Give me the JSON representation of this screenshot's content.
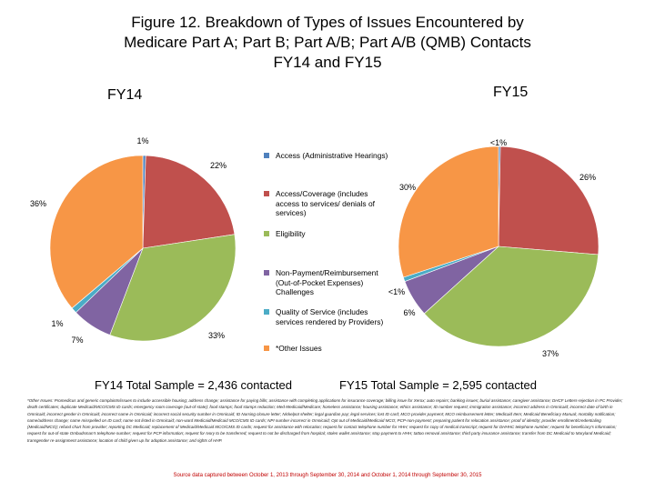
{
  "title": {
    "line1": "Figure 12. Breakdown of Types of Issues Encountered by",
    "line2": "Medicare Part A; Part B; Part A/B; Part A/B (QMB) Contacts",
    "line3": "FY14 and FY15"
  },
  "colors": {
    "access": "#4f81bd",
    "access_coverage": "#c0504d",
    "eligibility": "#9bbb59",
    "non_payment": "#8064a2",
    "quality": "#4bacc6",
    "other": "#f79646"
  },
  "legend": [
    {
      "key": "access",
      "label": "Access (Administrative Hearings)"
    },
    {
      "key": "access_coverage",
      "label": "Access/Coverage (includes access to services/ denials of services)"
    },
    {
      "key": "eligibility",
      "label": "Eligibility"
    },
    {
      "key": "non_payment",
      "label": "Non-Payment/Reimbursement (Out-of-Pocket Expenses) Challenges"
    },
    {
      "key": "quality",
      "label": "Quality of Service (includes services rendered by Providers)"
    },
    {
      "key": "other",
      "label": "*Other Issues"
    }
  ],
  "chart_data": [
    {
      "type": "pie",
      "title": "FY14",
      "total_label": "FY14 Total Sample = 2,436 contacted",
      "slices": [
        {
          "key": "access",
          "value": 0.5,
          "label": "1%"
        },
        {
          "key": "access_coverage",
          "value": 22,
          "label": "22%"
        },
        {
          "key": "eligibility",
          "value": 33,
          "label": "33%"
        },
        {
          "key": "non_payment",
          "value": 7,
          "label": "7%"
        },
        {
          "key": "quality",
          "value": 1,
          "label": "1%"
        },
        {
          "key": "other",
          "value": 36,
          "label": "36%"
        }
      ]
    },
    {
      "type": "pie",
      "title": "FY15",
      "total_label": "FY15 Total Sample = 2,595 contacted",
      "slices": [
        {
          "key": "access",
          "value": 0.3,
          "label": "<1%"
        },
        {
          "key": "access_coverage",
          "value": 26,
          "label": "26%"
        },
        {
          "key": "eligibility",
          "value": 37,
          "label": "37%"
        },
        {
          "key": "non_payment",
          "value": 6,
          "label": "6%"
        },
        {
          "key": "quality",
          "value": 0.7,
          "label": "<1%"
        },
        {
          "key": "other",
          "value": 30,
          "label": "30%"
        }
      ]
    }
  ],
  "footnote": "*Other Issues: Promedicus and generic complaints/issues to include accessible housing; address change; assistance for paying bills; assistance with completing applications for insurance coverage; billing issue for Xerox; auto repairs; banking issues; burial assistance; caregiver assistance; DHCF Letters-rejection in PC Provider; death certificates; duplicate Medicaid/MCO/CMS ID cards; emergency room coverage (out-of-state); food stamps; food stamps reduction; Med-Medicaid/Medicare; homeless assistance; housing assistance; ethics assistance; ID number request; immigration assistance; incorrect address in Omnicaid; incorrect date of birth in Omnicaid; incorrect gender in Omnicaid; incorrect name in Omnicaid; incorrect social security number in Omnicaid; ID Nursing closure letter; Nickelpot shelter; legal guardian pay; legal services; lost ID card; MCO provider payment; MCO reimbursement letter; Medicaid Item; Medicaid Beneficiary Manual; mortality notification; name/address change; name misspelled on ID card; name not listed in Omnicaid; non-ward Medicaid/Medicaid MCO/CMS ID cards; NPI number incorrect in Omnicaid; Opt out of Medicaid/Medicaid MCO; PCP-non-payment; preparing patient for relocation assistance; proof of identity; provider enrollment/credentialing (Medicaid/MCO); refund chart from provider; reporting DC Medicaid; replacement of Medicaid/Medicaid MCO/CMS ID cards; request for assistance with relocation; request for contact telephone number for HHH; request for copy of medical transcript; request for DHHHC telephone number; request for beneficiary's information; request for out-of-state Ombudsman's telephone number; request for PCP information; request for Ivory to be transferred; request to not be discharged from hospital; stolen wallet assistance; stop payment to HHH; tattoo removal assistance; third party insurance assistance; transfer from DC Medicaid to Maryland Medicaid; transgender re-assignment assistance; location of child given up for adoption assistance; and rights of HHP.",
  "source": "Source data captured between October 1, 2013 through September 30, 2014 and October 1, 2014 through September 30, 2015"
}
